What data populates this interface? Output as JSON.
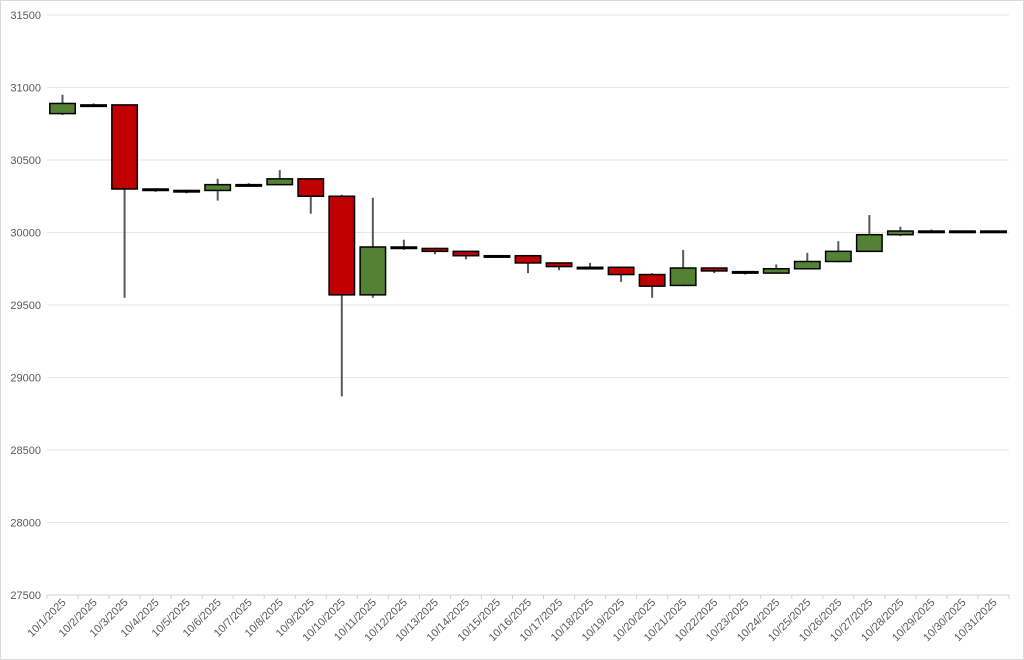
{
  "chart_data": {
    "type": "candlestick",
    "ylim": [
      27500,
      31500
    ],
    "y_ticks": [
      "27500",
      "28000",
      "28500",
      "29000",
      "29500",
      "30000",
      "30500",
      "31000",
      "31500"
    ],
    "grid": "horizontal",
    "colors": {
      "up": "#548235",
      "down": "#c00000",
      "wick": "#595959",
      "outline": "#000000"
    },
    "candles": [
      {
        "date": "10/1/2025",
        "open": 30820,
        "high": 30950,
        "low": 30810,
        "close": 30890
      },
      {
        "date": "10/2/2025",
        "open": 30880,
        "high": 30890,
        "low": 30870,
        "close": 30880
      },
      {
        "date": "10/3/2025",
        "open": 30880,
        "high": 30880,
        "low": 29550,
        "close": 30300
      },
      {
        "date": "10/4/2025",
        "open": 30300,
        "high": 30305,
        "low": 30280,
        "close": 30295
      },
      {
        "date": "10/5/2025",
        "open": 30285,
        "high": 30295,
        "low": 30270,
        "close": 30290
      },
      {
        "date": "10/6/2025",
        "open": 30290,
        "high": 30370,
        "low": 30220,
        "close": 30330
      },
      {
        "date": "10/7/2025",
        "open": 30320,
        "high": 30340,
        "low": 30315,
        "close": 30330
      },
      {
        "date": "10/8/2025",
        "open": 30330,
        "high": 30430,
        "low": 30330,
        "close": 30370
      },
      {
        "date": "10/9/2025",
        "open": 30370,
        "high": 30370,
        "low": 30130,
        "close": 30250
      },
      {
        "date": "10/10/2025",
        "open": 30250,
        "high": 30260,
        "low": 28870,
        "close": 29570
      },
      {
        "date": "10/11/2025",
        "open": 29570,
        "high": 30240,
        "low": 29550,
        "close": 29900
      },
      {
        "date": "10/12/2025",
        "open": 29890,
        "high": 29950,
        "low": 29880,
        "close": 29900
      },
      {
        "date": "10/13/2025",
        "open": 29890,
        "high": 29895,
        "low": 29850,
        "close": 29870
      },
      {
        "date": "10/14/2025",
        "open": 29870,
        "high": 29875,
        "low": 29815,
        "close": 29840
      },
      {
        "date": "10/15/2025",
        "open": 29840,
        "high": 29845,
        "low": 29835,
        "close": 29840
      },
      {
        "date": "10/16/2025",
        "open": 29840,
        "high": 29845,
        "low": 29720,
        "close": 29790
      },
      {
        "date": "10/17/2025",
        "open": 29790,
        "high": 29790,
        "low": 29740,
        "close": 29765
      },
      {
        "date": "10/18/2025",
        "open": 29760,
        "high": 29790,
        "low": 29755,
        "close": 29760
      },
      {
        "date": "10/19/2025",
        "open": 29760,
        "high": 29760,
        "low": 29660,
        "close": 29710
      },
      {
        "date": "10/20/2025",
        "open": 29710,
        "high": 29720,
        "low": 29550,
        "close": 29630
      },
      {
        "date": "10/21/2025",
        "open": 29635,
        "high": 29880,
        "low": 29630,
        "close": 29755
      },
      {
        "date": "10/22/2025",
        "open": 29755,
        "high": 29760,
        "low": 29720,
        "close": 29735
      },
      {
        "date": "10/23/2025",
        "open": 29730,
        "high": 29735,
        "low": 29710,
        "close": 29720
      },
      {
        "date": "10/24/2025",
        "open": 29720,
        "high": 29780,
        "low": 29715,
        "close": 29750
      },
      {
        "date": "10/25/2025",
        "open": 29750,
        "high": 29860,
        "low": 29745,
        "close": 29800
      },
      {
        "date": "10/26/2025",
        "open": 29800,
        "high": 29940,
        "low": 29795,
        "close": 29870
      },
      {
        "date": "10/27/2025",
        "open": 29870,
        "high": 30120,
        "low": 29865,
        "close": 29985
      },
      {
        "date": "10/28/2025",
        "open": 29985,
        "high": 30040,
        "low": 29975,
        "close": 30010
      },
      {
        "date": "10/29/2025",
        "open": 30005,
        "high": 30020,
        "low": 30000,
        "close": 30010
      },
      {
        "date": "10/30/2025",
        "open": 30010,
        "high": 30012,
        "low": 30008,
        "close": 30010
      },
      {
        "date": "10/31/2025",
        "open": 30010,
        "high": 30012,
        "low": 30008,
        "close": 30010
      }
    ]
  }
}
